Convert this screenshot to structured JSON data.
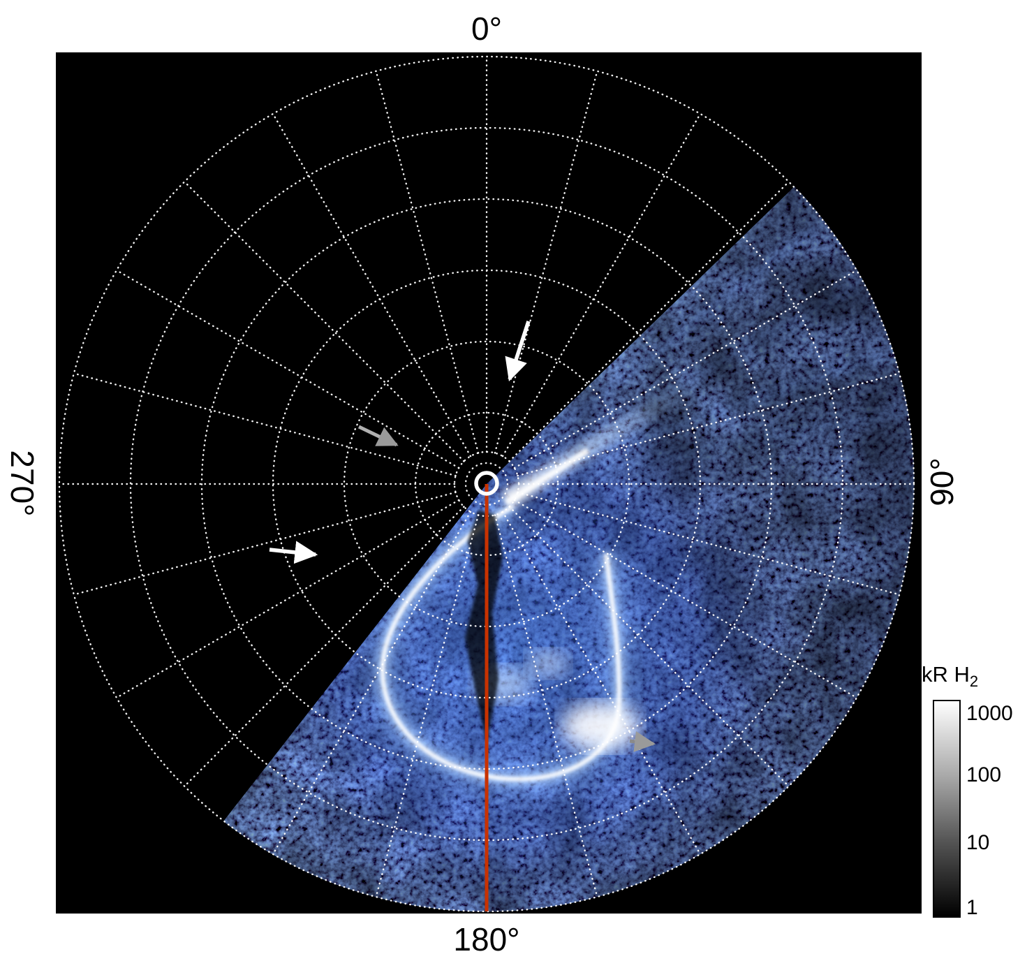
{
  "figure": {
    "background": "#ffffff",
    "panel_background": "#000000",
    "grid_color": "#ffffff"
  },
  "labels": {
    "top": "0°",
    "right": "90°",
    "bottom": "180°",
    "left": "270°"
  },
  "colorbar": {
    "title": "kR H",
    "title_sub": "2",
    "ticks": [
      "1000",
      "100",
      "10",
      "1"
    ]
  },
  "chart_data": {
    "type": "heatmap",
    "projection": "polar",
    "content": "Polar projection image of H2 auroral emission; blue speckled emission fills the sector from ~46° through 180° to ~218° azimuth with a bright hook-shaped auroral arc at mid radii; remainder of the polar disk is black (no data).",
    "angular_ticks_deg": [
      0,
      90,
      180,
      270
    ],
    "angular_tick_labels": [
      "0°",
      "90°",
      "180°",
      "270°"
    ],
    "angle_zero_at": "top",
    "angle_direction": "clockwise",
    "grid": {
      "rings": 6,
      "spoke_interval_deg": 15,
      "inner_rings": [
        30,
        46
      ],
      "style": "dotted",
      "color": "#ffffff"
    },
    "emission": {
      "sector_start_deg": 46,
      "sector_end_deg": 218,
      "palette": [
        "#000000",
        "#1030a0",
        "#4c82e6",
        "#ffffff"
      ],
      "peak_feature": "bright hook-shaped auroral arc spanning ~120°-200° azimuth at mid radii, brightest patches near the arc bottom and near the pole"
    },
    "meridian_line": {
      "azimuth_deg": 180,
      "color": "#c83200"
    },
    "colorbar": {
      "title": "kR H2",
      "scale": "log",
      "min": 1,
      "max": 1000,
      "ticks": [
        1000,
        100,
        10,
        1
      ],
      "gradient_top": "#ffffff",
      "gradient_bottom": "#000000"
    },
    "annotations": {
      "arrows": [
        {
          "color": "white",
          "points_toward": "0° meridian just above the pole"
        },
        {
          "color": "gray",
          "points_toward": "region just left of the pole"
        },
        {
          "color": "white",
          "points_toward": "dusk-side (270°) grid region"
        },
        {
          "color": "gray",
          "points_toward": "bright auroral arc patch near 150° azimuth"
        }
      ]
    }
  }
}
